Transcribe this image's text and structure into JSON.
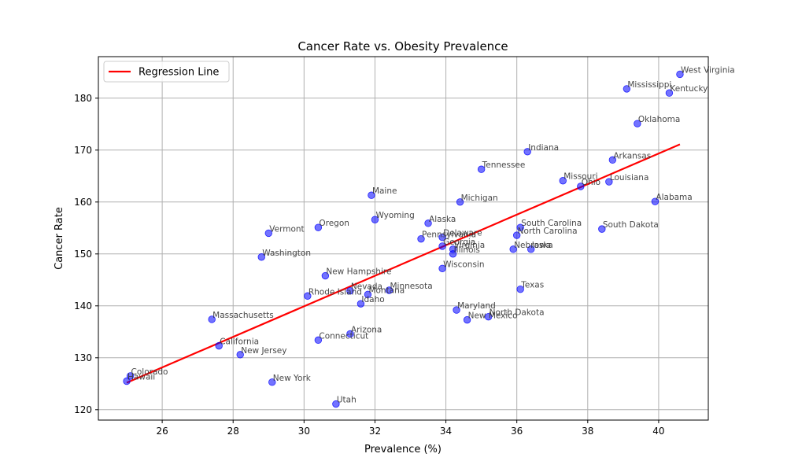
{
  "chart_data": {
    "type": "scatter",
    "title": "Cancer Rate vs. Obesity Prevalence",
    "xlabel": "Prevalence (%)",
    "ylabel": "Cancer Rate",
    "xlim": [
      24.2,
      41.4
    ],
    "ylim": [
      118,
      188
    ],
    "xticks": [
      26,
      28,
      30,
      32,
      34,
      36,
      38,
      40
    ],
    "yticks": [
      120,
      130,
      140,
      150,
      160,
      170,
      180
    ],
    "grid": true,
    "legend_position": "top-left",
    "point_color": "#0000ff",
    "regression": {
      "name": "Regression Line",
      "color": "#ff0000",
      "x": [
        25.0,
        40.6
      ],
      "y": [
        125.2,
        171.1
      ]
    },
    "points": [
      {
        "label": "West Virginia",
        "x": 40.6,
        "y": 184.6
      },
      {
        "label": "Mississippi",
        "x": 39.1,
        "y": 181.8
      },
      {
        "label": "Kentucky",
        "x": 40.3,
        "y": 181.0
      },
      {
        "label": "Oklahoma",
        "x": 39.4,
        "y": 175.1
      },
      {
        "label": "Indiana",
        "x": 36.3,
        "y": 169.7
      },
      {
        "label": "Arkansas",
        "x": 38.7,
        "y": 168.1
      },
      {
        "label": "Tennessee",
        "x": 35.0,
        "y": 166.3
      },
      {
        "label": "Missouri",
        "x": 37.3,
        "y": 164.1
      },
      {
        "label": "Louisiana",
        "x": 38.6,
        "y": 163.9
      },
      {
        "label": "Ohio",
        "x": 37.8,
        "y": 163.0
      },
      {
        "label": "Maine",
        "x": 31.9,
        "y": 161.3
      },
      {
        "label": "Michigan",
        "x": 34.4,
        "y": 160.0
      },
      {
        "label": "Alabama",
        "x": 39.9,
        "y": 160.1
      },
      {
        "label": "Wyoming",
        "x": 32.0,
        "y": 156.6
      },
      {
        "label": "Alaska",
        "x": 33.5,
        "y": 155.9
      },
      {
        "label": "Oregon",
        "x": 30.4,
        "y": 155.1
      },
      {
        "label": "South Carolina",
        "x": 36.1,
        "y": 155.1
      },
      {
        "label": "South Dakota",
        "x": 38.4,
        "y": 154.8
      },
      {
        "label": "Vermont",
        "x": 29.0,
        "y": 154.0
      },
      {
        "label": "North Carolina",
        "x": 36.0,
        "y": 153.6
      },
      {
        "label": "Delaware",
        "x": 33.9,
        "y": 153.2
      },
      {
        "label": "Pennsylvania",
        "x": 33.3,
        "y": 152.9
      },
      {
        "label": "Georgia",
        "x": 33.9,
        "y": 151.5
      },
      {
        "label": "Nebraska",
        "x": 35.9,
        "y": 150.9
      },
      {
        "label": "Iowa",
        "x": 36.4,
        "y": 150.9
      },
      {
        "label": "Virginia",
        "x": 34.2,
        "y": 150.9
      },
      {
        "label": "Illinois",
        "x": 34.2,
        "y": 150.0
      },
      {
        "label": "Washington",
        "x": 28.8,
        "y": 149.4
      },
      {
        "label": "Wisconsin",
        "x": 33.9,
        "y": 147.2
      },
      {
        "label": "New Hampshire",
        "x": 30.6,
        "y": 145.8
      },
      {
        "label": "Texas",
        "x": 36.1,
        "y": 143.2
      },
      {
        "label": "Minnesota",
        "x": 32.4,
        "y": 143.0
      },
      {
        "label": "Nevada",
        "x": 31.3,
        "y": 142.9
      },
      {
        "label": "Montana",
        "x": 31.8,
        "y": 142.2
      },
      {
        "label": "Rhode Island",
        "x": 30.1,
        "y": 141.9
      },
      {
        "label": "Idaho",
        "x": 31.6,
        "y": 140.4
      },
      {
        "label": "Maryland",
        "x": 34.3,
        "y": 139.2
      },
      {
        "label": "North Dakota",
        "x": 35.2,
        "y": 137.9
      },
      {
        "label": "Massachusetts",
        "x": 27.4,
        "y": 137.4
      },
      {
        "label": "New Mexico",
        "x": 34.6,
        "y": 137.3
      },
      {
        "label": "Arizona",
        "x": 31.3,
        "y": 134.6
      },
      {
        "label": "Connecticut",
        "x": 30.4,
        "y": 133.4
      },
      {
        "label": "California",
        "x": 27.6,
        "y": 132.3
      },
      {
        "label": "New Jersey",
        "x": 28.2,
        "y": 130.6
      },
      {
        "label": "Colorado",
        "x": 25.1,
        "y": 126.5
      },
      {
        "label": "Hawaii",
        "x": 25.0,
        "y": 125.5
      },
      {
        "label": "New York",
        "x": 29.1,
        "y": 125.3
      },
      {
        "label": "Utah",
        "x": 30.9,
        "y": 121.1
      }
    ]
  }
}
